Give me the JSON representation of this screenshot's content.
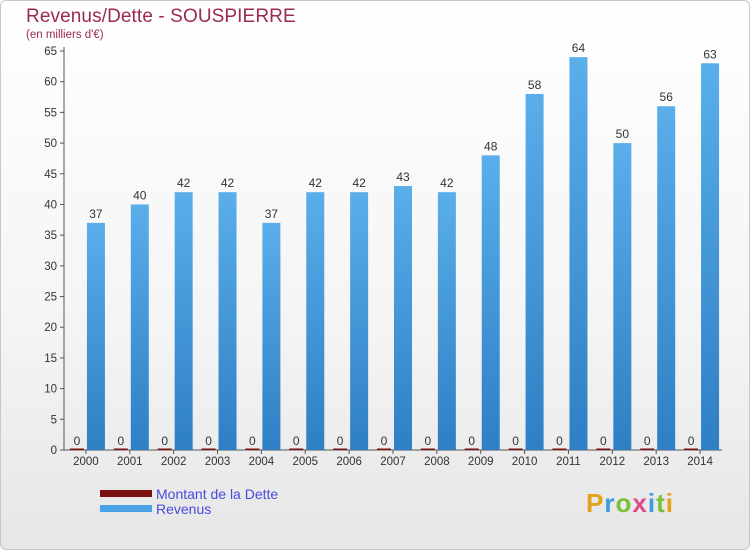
{
  "title": "Revenus/Dette - SOUSPIERRE",
  "subtitle": "(en milliers d'€)",
  "brand": {
    "letters": [
      "P",
      "r",
      "o",
      "x",
      "i",
      "t",
      "i"
    ],
    "colors": [
      "#e3a21a",
      "#3d9be0",
      "#7cbf3a",
      "#e04a8a",
      "#3d9be0",
      "#7cbf3a",
      "#e3a21a"
    ]
  },
  "chart_data": {
    "type": "bar",
    "categories": [
      "2000",
      "2001",
      "2002",
      "2003",
      "2004",
      "2005",
      "2006",
      "2007",
      "2008",
      "2009",
      "2010",
      "2011",
      "2012",
      "2013",
      "2014"
    ],
    "series": [
      {
        "name": "Montant de la Dette",
        "color": "#7a1212",
        "values": [
          0,
          0,
          0,
          0,
          0,
          0,
          0,
          0,
          0,
          0,
          0,
          0,
          0,
          0,
          0
        ]
      },
      {
        "name": "Revenus",
        "color": "#4aa3e6",
        "values": [
          37,
          40,
          42,
          42,
          37,
          42,
          42,
          43,
          42,
          48,
          58,
          64,
          50,
          56,
          63
        ]
      }
    ],
    "ylim": [
      0,
      65
    ],
    "yticks": [
      0,
      5,
      10,
      15,
      20,
      25,
      30,
      35,
      40,
      45,
      50,
      55,
      60,
      65
    ],
    "grid": false,
    "legend": "bottom-left"
  }
}
